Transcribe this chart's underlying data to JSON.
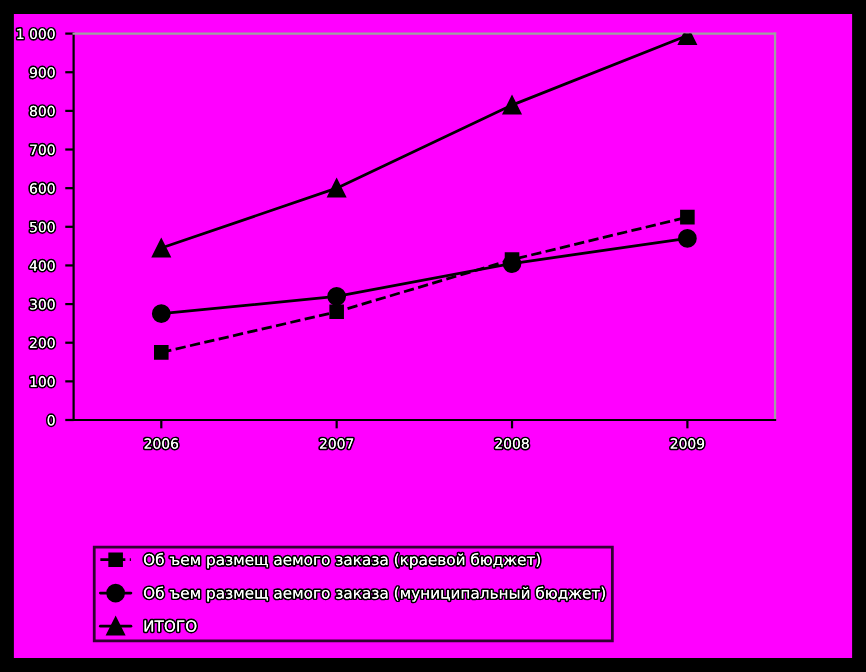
{
  "chart_data": {
    "type": "line",
    "categories": [
      "2006",
      "2007",
      "2008",
      "2009"
    ],
    "series": [
      {
        "name": "Об ъем размещ аемого заказа (краевой бюджет)",
        "color": "#000000",
        "values": [
          175,
          280,
          415,
          525
        ],
        "marker": "square",
        "line_style": "dashed"
      },
      {
        "name": "Об ъем размещ аемого заказа (муниципальный бюджет)",
        "color": "#000000",
        "values": [
          275,
          320,
          405,
          470
        ],
        "marker": "circle",
        "line_style": "solid"
      },
      {
        "name": "ИТОГО",
        "color": "#000000",
        "values": [
          445,
          600,
          815,
          995
        ],
        "marker": "triangle",
        "line_style": "solid"
      }
    ],
    "ylim": [
      0,
      1000
    ],
    "yticks": [
      0,
      100,
      200,
      300,
      400,
      500,
      600,
      700,
      800,
      900,
      {
        "value": 1000,
        "label": "1 000"
      }
    ],
    "grid": false,
    "legend": "bottom"
  }
}
